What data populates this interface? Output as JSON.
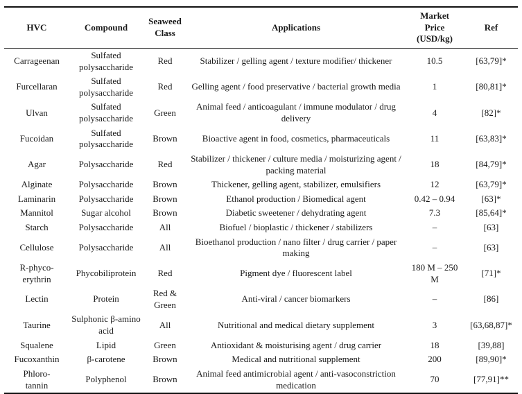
{
  "table": {
    "columns": [
      {
        "label": "HVC"
      },
      {
        "label": "Compound"
      },
      {
        "label": "Seaweed\nClass"
      },
      {
        "label": "Applications"
      },
      {
        "label": "Market\nPrice\n(USD/kg)"
      },
      {
        "label": "Ref"
      }
    ],
    "rows": [
      {
        "hvc": "Carrageenan",
        "compound": "Sulfated polysaccharide",
        "seaweed_class": "Red",
        "applications": "Stabilizer / gelling agent / texture modifier/ thickener",
        "price": "10.5",
        "ref": "[63,79]*"
      },
      {
        "hvc": "Furcellaran",
        "compound": "Sulfated polysaccharide",
        "seaweed_class": "Red",
        "applications": "Gelling agent / food preservative / bacterial growth media",
        "price": "1",
        "ref": "[80,81]*"
      },
      {
        "hvc": "Ulvan",
        "compound": "Sulfated polysaccharide",
        "seaweed_class": "Green",
        "applications": "Animal feed / anticoagulant / immune modulator / drug delivery",
        "price": "4",
        "ref": "[82]*"
      },
      {
        "hvc": "Fucoidan",
        "compound": "Sulfated polysaccharide",
        "seaweed_class": "Brown",
        "applications": "Bioactive agent in food, cosmetics, pharmaceuticals",
        "price": "11",
        "ref": "[63,83]*"
      },
      {
        "hvc": "Agar",
        "compound": "Polysaccharide",
        "seaweed_class": "Red",
        "applications": "Stabilizer / thickener / culture media / moisturizing agent / packing material",
        "price": "18",
        "ref": "[84,79]*"
      },
      {
        "hvc": "Alginate",
        "compound": "Polysaccharide",
        "seaweed_class": "Brown",
        "applications": "Thickener, gelling agent, stabilizer, emulsifiers",
        "price": "12",
        "ref": "[63,79]*"
      },
      {
        "hvc": "Laminarin",
        "compound": "Polysaccharide",
        "seaweed_class": "Brown",
        "applications": "Ethanol production / Biomedical agent",
        "price": "0.42 – 0.94",
        "ref": "[63]*"
      },
      {
        "hvc": "Mannitol",
        "compound": "Sugar alcohol",
        "seaweed_class": "Brown",
        "applications": "Diabetic sweetener / dehydrating agent",
        "price": "7.3",
        "ref": "[85,64]*"
      },
      {
        "hvc": "Starch",
        "compound": "Polysaccharide",
        "seaweed_class": "All",
        "applications": "Biofuel / bioplastic / thickener / stabilizers",
        "price": "–",
        "ref": "[63]"
      },
      {
        "hvc": "Cellulose",
        "compound": "Polysaccharide",
        "seaweed_class": "All",
        "applications": "Bioethanol production / nano filter / drug carrier / paper making",
        "price": "–",
        "ref": "[63]"
      },
      {
        "hvc": "R-phyco-\nerythrin",
        "compound": "Phycobiliprotein",
        "seaweed_class": "Red",
        "applications": "Pigment dye / fluorescent label",
        "price": "180 M – 250\nM",
        "ref": "[71]*"
      },
      {
        "hvc": "Lectin",
        "compound": "Protein",
        "seaweed_class": "Red & Green",
        "applications": "Anti-viral / cancer biomarkers",
        "price": "–",
        "ref": "[86]"
      },
      {
        "hvc": "Taurine",
        "compound": "Sulphonic β-amino acid",
        "seaweed_class": "All",
        "applications": "Nutritional and medical dietary supplement",
        "price": "3",
        "ref": "[63,68,87]*"
      },
      {
        "hvc": "Squalene",
        "compound": "Lipid",
        "seaweed_class": "Green",
        "applications": "Antioxidant & moisturising agent / drug carrier",
        "price": "18",
        "ref": "[39,88]"
      },
      {
        "hvc": "Fucoxanthin",
        "compound": "β-carotene",
        "seaweed_class": "Brown",
        "applications": "Medical and nutritional supplement",
        "price": "200",
        "ref": "[89,90]*"
      },
      {
        "hvc": "Phloro-\ntannin",
        "compound": "Polyphenol",
        "seaweed_class": "Brown",
        "applications": "Animal feed antimicrobial agent / anti-vasoconstriction medication",
        "price": "70",
        "ref": "[77,91]**"
      }
    ]
  }
}
